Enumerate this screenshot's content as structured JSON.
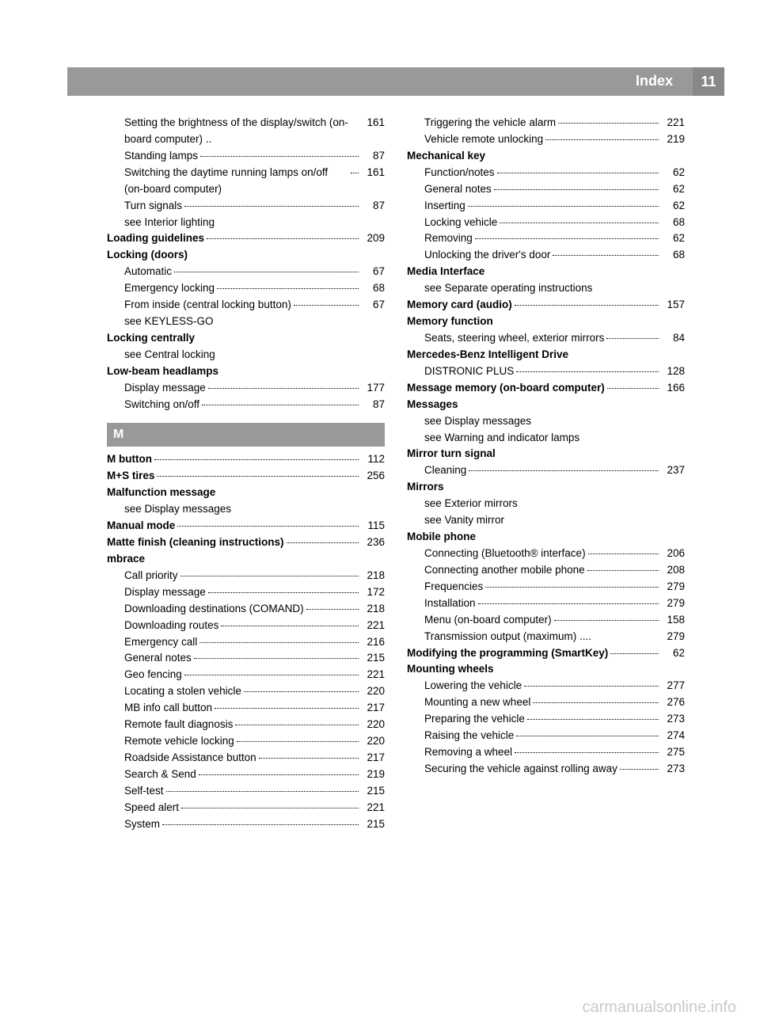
{
  "header": {
    "title": "Index",
    "pageNumber": "11"
  },
  "colors": {
    "barBg": "#999999",
    "barText": "#ffffff",
    "text": "#000000"
  },
  "leftColumn": [
    {
      "type": "sub",
      "text": "Setting the brightness of the display/switch (on-board computer) ..",
      "page": "161",
      "noLeader": true
    },
    {
      "type": "sub",
      "text": "Standing lamps",
      "page": "87"
    },
    {
      "type": "sub",
      "text": "Switching the daytime running lamps on/off (on-board computer)",
      "page": "161"
    },
    {
      "type": "sub",
      "text": "Turn signals",
      "page": "87"
    },
    {
      "type": "sub",
      "text": "see Interior lighting"
    },
    {
      "type": "main",
      "text": "Loading guidelines",
      "page": "209"
    },
    {
      "type": "main",
      "text": "Locking (doors)"
    },
    {
      "type": "sub",
      "text": "Automatic",
      "page": "67"
    },
    {
      "type": "sub",
      "text": "Emergency locking",
      "page": "68"
    },
    {
      "type": "sub",
      "text": "From inside (central locking button)",
      "page": "67"
    },
    {
      "type": "sub",
      "text": "see KEYLESS-GO"
    },
    {
      "type": "main",
      "text": "Locking centrally"
    },
    {
      "type": "sub",
      "text": "see Central locking"
    },
    {
      "type": "main",
      "text": "Low-beam headlamps"
    },
    {
      "type": "sub",
      "text": "Display message",
      "page": "177"
    },
    {
      "type": "sub",
      "text": "Switching on/off",
      "page": "87"
    },
    {
      "type": "section",
      "text": "M"
    },
    {
      "type": "main",
      "text": "M button",
      "page": "112"
    },
    {
      "type": "main",
      "text": "M+S tires",
      "page": "256"
    },
    {
      "type": "main",
      "text": "Malfunction message"
    },
    {
      "type": "sub",
      "text": "see Display messages"
    },
    {
      "type": "main",
      "text": "Manual mode",
      "page": "115"
    },
    {
      "type": "main",
      "text": "Matte finish (cleaning instructions)",
      "page": "236"
    },
    {
      "type": "main",
      "text": "mbrace"
    },
    {
      "type": "sub",
      "text": "Call priority",
      "page": "218"
    },
    {
      "type": "sub",
      "text": "Display message",
      "page": "172"
    },
    {
      "type": "sub",
      "text": "Downloading destinations (COMAND)",
      "page": "218"
    },
    {
      "type": "sub",
      "text": "Downloading routes",
      "page": "221"
    },
    {
      "type": "sub",
      "text": "Emergency call",
      "page": "216"
    },
    {
      "type": "sub",
      "text": "General notes",
      "page": "215"
    },
    {
      "type": "sub",
      "text": "Geo fencing",
      "page": "221"
    },
    {
      "type": "sub",
      "text": "Locating a stolen vehicle",
      "page": "220"
    },
    {
      "type": "sub",
      "text": "MB info call button",
      "page": "217"
    },
    {
      "type": "sub",
      "text": "Remote fault diagnosis",
      "page": "220"
    },
    {
      "type": "sub",
      "text": "Remote vehicle locking",
      "page": "220"
    },
    {
      "type": "sub",
      "text": "Roadside Assistance button",
      "page": "217"
    },
    {
      "type": "sub",
      "text": "Search & Send",
      "page": "219"
    },
    {
      "type": "sub",
      "text": "Self-test",
      "page": "215"
    },
    {
      "type": "sub",
      "text": "Speed alert",
      "page": "221"
    },
    {
      "type": "sub",
      "text": "System",
      "page": "215"
    }
  ],
  "rightColumn": [
    {
      "type": "sub",
      "text": "Triggering the vehicle alarm",
      "page": "221"
    },
    {
      "type": "sub",
      "text": "Vehicle remote unlocking",
      "page": "219"
    },
    {
      "type": "main",
      "text": "Mechanical key"
    },
    {
      "type": "sub",
      "text": "Function/notes",
      "page": "62"
    },
    {
      "type": "sub",
      "text": "General notes",
      "page": "62"
    },
    {
      "type": "sub",
      "text": "Inserting",
      "page": "62"
    },
    {
      "type": "sub",
      "text": "Locking vehicle",
      "page": "68"
    },
    {
      "type": "sub",
      "text": "Removing",
      "page": "62"
    },
    {
      "type": "sub",
      "text": "Unlocking the driver's door",
      "page": "68"
    },
    {
      "type": "main",
      "text": "Media Interface"
    },
    {
      "type": "sub",
      "text": "see Separate operating instructions"
    },
    {
      "type": "main",
      "text": "Memory card (audio)",
      "page": "157"
    },
    {
      "type": "main",
      "text": "Memory function"
    },
    {
      "type": "sub",
      "text": "Seats, steering wheel, exterior mirrors",
      "page": "84"
    },
    {
      "type": "main",
      "text": "Mercedes-Benz Intelligent Drive"
    },
    {
      "type": "sub",
      "text": "DISTRONIC PLUS",
      "page": "128"
    },
    {
      "type": "main",
      "text": "Message memory (on-board computer)",
      "page": "166"
    },
    {
      "type": "main",
      "text": "Messages"
    },
    {
      "type": "sub",
      "text": "see Display messages"
    },
    {
      "type": "sub",
      "text": "see Warning and indicator lamps"
    },
    {
      "type": "main",
      "text": "Mirror turn signal"
    },
    {
      "type": "sub",
      "text": "Cleaning",
      "page": "237"
    },
    {
      "type": "main",
      "text": "Mirrors"
    },
    {
      "type": "sub",
      "text": "see Exterior mirrors"
    },
    {
      "type": "sub",
      "text": "see Vanity mirror"
    },
    {
      "type": "main",
      "text": "Mobile phone"
    },
    {
      "type": "sub",
      "text": "Connecting (Bluetooth® interface)",
      "page": "206"
    },
    {
      "type": "sub",
      "text": "Connecting another mobile phone",
      "page": "208"
    },
    {
      "type": "sub",
      "text": "Frequencies",
      "page": "279"
    },
    {
      "type": "sub",
      "text": "Installation",
      "page": "279"
    },
    {
      "type": "sub",
      "text": "Menu (on-board computer)",
      "page": "158"
    },
    {
      "type": "sub",
      "text": "Transmission output (maximum) ....",
      "page": "279",
      "noLeader": true
    },
    {
      "type": "main",
      "text": "Modifying the programming (SmartKey)",
      "page": "62"
    },
    {
      "type": "main",
      "text": "Mounting wheels"
    },
    {
      "type": "sub",
      "text": "Lowering the vehicle",
      "page": "277"
    },
    {
      "type": "sub",
      "text": "Mounting a new wheel",
      "page": "276"
    },
    {
      "type": "sub",
      "text": "Preparing the vehicle",
      "page": "273"
    },
    {
      "type": "sub",
      "text": "Raising the vehicle",
      "page": "274"
    },
    {
      "type": "sub",
      "text": "Removing a wheel",
      "page": "275"
    },
    {
      "type": "sub",
      "text": "Securing the vehicle against rolling away",
      "page": "273"
    }
  ],
  "watermark": "carmanualsonline.info"
}
